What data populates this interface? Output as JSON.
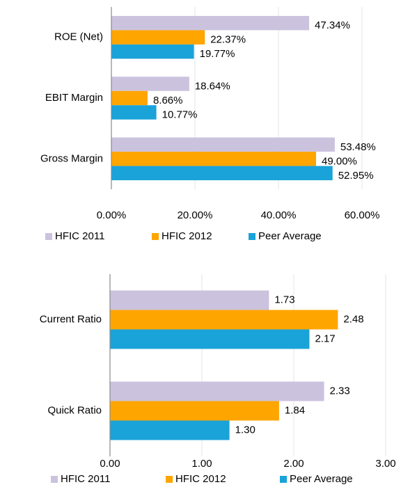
{
  "chart_data": [
    {
      "type": "bar",
      "orientation": "horizontal",
      "categories": [
        "ROE (Net)",
        "EBIT Margin",
        "Gross Margin"
      ],
      "series": [
        {
          "name": "HFIC 2011",
          "color": "#cbc3de",
          "values": [
            47.34,
            18.64,
            53.48
          ],
          "value_labels": [
            "47.34%",
            "18.64%",
            "53.48%"
          ]
        },
        {
          "name": "HFIC 2012",
          "color": "#ffa500",
          "values": [
            22.37,
            8.66,
            49.0
          ],
          "value_labels": [
            "22.37%",
            "8.66%",
            "49.00%"
          ]
        },
        {
          "name": "Peer Average",
          "color": "#1aa3d9",
          "values": [
            19.77,
            10.77,
            52.95
          ],
          "value_labels": [
            "19.77%",
            "10.77%",
            "52.95%"
          ]
        }
      ],
      "xlim": [
        0,
        60
      ],
      "xticks": [
        {
          "value": 0,
          "label": "0.00%"
        },
        {
          "value": 20,
          "label": "20.00%"
        },
        {
          "value": 40,
          "label": "40.00%"
        },
        {
          "value": 60,
          "label": "60.00%"
        }
      ],
      "grid": true,
      "legend": "bottom"
    },
    {
      "type": "bar",
      "orientation": "horizontal",
      "categories": [
        "Current Ratio",
        "Quick Ratio"
      ],
      "series": [
        {
          "name": "HFIC 2011",
          "color": "#cbc3de",
          "values": [
            1.73,
            2.33
          ],
          "value_labels": [
            "1.73",
            "2.33"
          ]
        },
        {
          "name": "HFIC 2012",
          "color": "#ffa500",
          "values": [
            2.48,
            1.84
          ],
          "value_labels": [
            "2.48",
            "1.84"
          ]
        },
        {
          "name": "Peer Average",
          "color": "#1aa3d9",
          "values": [
            2.17,
            1.3
          ],
          "value_labels": [
            "2.17",
            "1.30"
          ]
        }
      ],
      "xlim": [
        0,
        3
      ],
      "xticks": [
        {
          "value": 0,
          "label": "0.00"
        },
        {
          "value": 1,
          "label": "1.00"
        },
        {
          "value": 2,
          "label": "2.00"
        },
        {
          "value": 3,
          "label": "3.00"
        }
      ],
      "grid": true,
      "legend": "bottom"
    }
  ]
}
